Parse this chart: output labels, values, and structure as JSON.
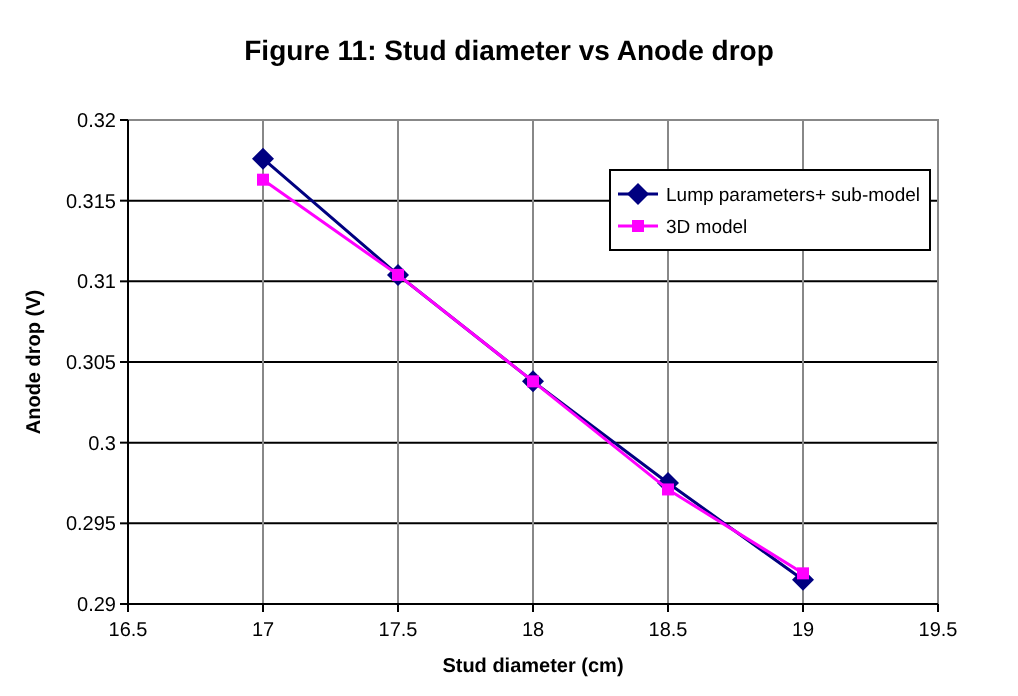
{
  "chart_data": {
    "type": "line",
    "title": "Figure 11: Stud diameter vs Anode drop",
    "xlabel": "Stud diameter (cm)",
    "ylabel": "Anode drop (V)",
    "x": [
      17,
      17.5,
      18,
      18.5,
      19
    ],
    "series": [
      {
        "name": "Lump parameters+ sub-model",
        "color": "#000080",
        "marker": "diamond",
        "values": [
          0.3176,
          0.3104,
          0.3038,
          0.2975,
          0.2915
        ]
      },
      {
        "name": "3D model",
        "color": "#ff00ff",
        "marker": "square",
        "values": [
          0.3163,
          0.3104,
          0.3038,
          0.2971,
          0.2919
        ]
      }
    ],
    "xlim": [
      16.5,
      19.5
    ],
    "xticks": [
      16.5,
      17,
      17.5,
      18,
      18.5,
      19,
      19.5
    ],
    "ylim": [
      0.29,
      0.32
    ],
    "yticks": [
      0.29,
      0.295,
      0.3,
      0.305,
      0.31,
      0.315,
      0.32
    ],
    "grid": true,
    "legend": "top right"
  }
}
